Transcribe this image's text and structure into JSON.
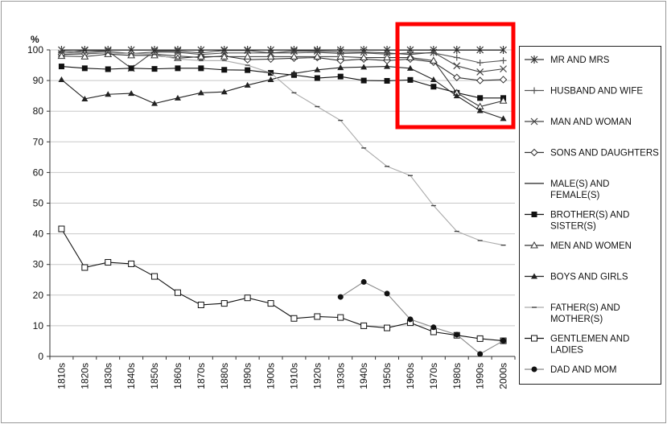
{
  "chart_data": {
    "type": "line",
    "ylabel": "%",
    "ylim": [
      0,
      100
    ],
    "yticks": [
      0,
      10,
      20,
      30,
      40,
      50,
      60,
      70,
      80,
      90,
      100
    ],
    "categories": [
      "1810s",
      "1820s",
      "1830s",
      "1840s",
      "1850s",
      "1860s",
      "1870s",
      "1880s",
      "1890s",
      "1900s",
      "1910s",
      "1920s",
      "1930s",
      "1940s",
      "1950s",
      "1960s",
      "1970s",
      "1980s",
      "1990s",
      "2000s"
    ],
    "grid": "horizontal",
    "legend_position": "right",
    "series": [
      {
        "name": "MR AND MRS",
        "marker": "asterisk",
        "color": "#333333",
        "values": [
          100,
          100,
          100,
          100,
          100,
          100,
          100,
          100,
          100,
          100,
          100,
          100,
          100,
          100,
          100,
          100,
          100,
          100,
          100,
          100
        ]
      },
      {
        "name": "HUSBAND AND WIFE",
        "marker": "plus",
        "color": "#555555",
        "values": [
          99.5,
          99.2,
          99.5,
          98.8,
          99.3,
          99.2,
          98.5,
          99.0,
          99.0,
          99.0,
          99.0,
          99.2,
          98.8,
          99.0,
          98.6,
          99.0,
          99.0,
          97.5,
          95.8,
          96.5
        ]
      },
      {
        "name": "MAN AND WOMAN",
        "marker": "x",
        "color": "#444444",
        "values": [
          98.8,
          99.8,
          99.6,
          94.0,
          99.6,
          99.6,
          99.0,
          99.8,
          99.8,
          99.0,
          99.6,
          99.6,
          99.3,
          99.3,
          99.0,
          98.5,
          99.2,
          94.8,
          92.8,
          93.8
        ]
      },
      {
        "name": "SONS AND DAUGHTERS",
        "marker": "diamond",
        "color": "#333333",
        "values": [
          98.5,
          98.7,
          99.0,
          98.8,
          98.6,
          98.0,
          97.5,
          98.0,
          96.8,
          97.0,
          97.3,
          97.5,
          96.5,
          97.0,
          96.5,
          97.0,
          96.0,
          91.0,
          90.0,
          90.3
        ]
      },
      {
        "name": "MALE(S) AND FEMALE(S)",
        "marker": "none",
        "color": "#222222",
        "values": [
          99.9,
          99.9,
          99.9,
          99.9,
          99.9,
          99.9,
          99.9,
          99.9,
          99.9,
          99.9,
          99.9,
          99.9,
          99.9,
          99.9,
          99.9,
          99.9,
          99.9,
          99.9,
          99.9,
          99.9
        ]
      },
      {
        "name": "BROTHER(S) AND SISTER(S)",
        "marker": "square-filled",
        "color": "#111111",
        "values": [
          94.6,
          94.0,
          93.7,
          94.0,
          93.8,
          94.0,
          94.0,
          93.5,
          93.4,
          92.5,
          91.8,
          90.8,
          91.3,
          90.0,
          89.9,
          90.2,
          88.0,
          86.0,
          84.3,
          84.3
        ]
      },
      {
        "name": "MEN AND WOMEN",
        "marker": "triangle-open",
        "color": "#333333",
        "values": [
          98.0,
          97.8,
          98.6,
          98.2,
          98.2,
          97.3,
          97.8,
          97.8,
          97.8,
          97.8,
          97.8,
          97.8,
          97.8,
          97.5,
          97.5,
          97.5,
          96.5,
          86.0,
          81.5,
          83.4
        ]
      },
      {
        "name": "BOYS AND GIRLS",
        "marker": "triangle-filled",
        "color": "#222222",
        "values": [
          90.3,
          84.0,
          85.5,
          85.8,
          82.5,
          84.3,
          86.0,
          86.3,
          88.5,
          90.3,
          92.3,
          93.5,
          94.2,
          94.4,
          94.6,
          94.0,
          90.3,
          85.0,
          80.2,
          77.6
        ]
      },
      {
        "name": "FATHER(S) AND MOTHER(S)",
        "marker": "dash",
        "color": "#aaaaaa",
        "values": [
          99.0,
          99.0,
          99.0,
          98.8,
          98.5,
          97.0,
          96.5,
          96.5,
          95.0,
          92.5,
          86.0,
          81.5,
          77.0,
          68.0,
          62.0,
          59.0,
          49.2,
          40.8,
          37.8,
          36.3
        ]
      },
      {
        "name": "GENTLEMEN AND LADIES",
        "marker": "square-open",
        "color": "#111111",
        "values": [
          41.6,
          29.0,
          30.7,
          30.2,
          26.1,
          20.8,
          16.8,
          17.3,
          19.1,
          17.3,
          12.4,
          13.0,
          12.7,
          10.0,
          9.3,
          11.0,
          8.0,
          6.9,
          5.8,
          5.1
        ]
      },
      {
        "name": "DAD AND MOM",
        "marker": "circle-filled",
        "color": "#888888",
        "values": [
          null,
          null,
          null,
          null,
          null,
          null,
          null,
          null,
          null,
          null,
          null,
          null,
          19.4,
          24.3,
          20.5,
          12.1,
          9.5,
          7.1,
          0.8,
          5.1
        ]
      }
    ]
  }
}
